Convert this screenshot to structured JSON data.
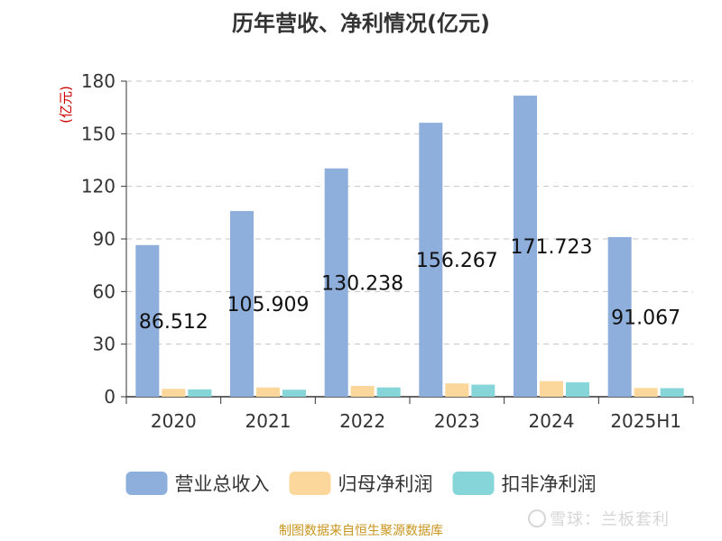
{
  "chart_data": {
    "type": "bar",
    "title": "历年营收、净利情况(亿元)",
    "ylabel": "(亿元)",
    "xlabel": "",
    "ylim": [
      0,
      180
    ],
    "yticks": [
      0,
      30,
      60,
      90,
      120,
      150,
      180
    ],
    "grid": true,
    "legend_position": "bottom",
    "categories": [
      "2020",
      "2021",
      "2022",
      "2023",
      "2024",
      "2025H1"
    ],
    "series": [
      {
        "name": "营业总收入",
        "color": "#8eaedb",
        "values": [
          86.512,
          105.909,
          130.238,
          156.267,
          171.723,
          91.067
        ]
      },
      {
        "name": "归母净利润",
        "color": "#fcd79b",
        "values": [
          4.5,
          5.3,
          6.2,
          7.6,
          8.9,
          5.0
        ]
      },
      {
        "name": "扣非净利润",
        "color": "#86d5d9",
        "values": [
          4.2,
          4.0,
          5.3,
          6.9,
          8.2,
          4.9
        ]
      }
    ],
    "data_labels": [
      "86.512",
      "105.909",
      "130.238",
      "156.267",
      "171.723",
      "91.067"
    ]
  },
  "footer": "制图数据来自恒生聚源数据库",
  "watermark": "雪球：兰板套利"
}
